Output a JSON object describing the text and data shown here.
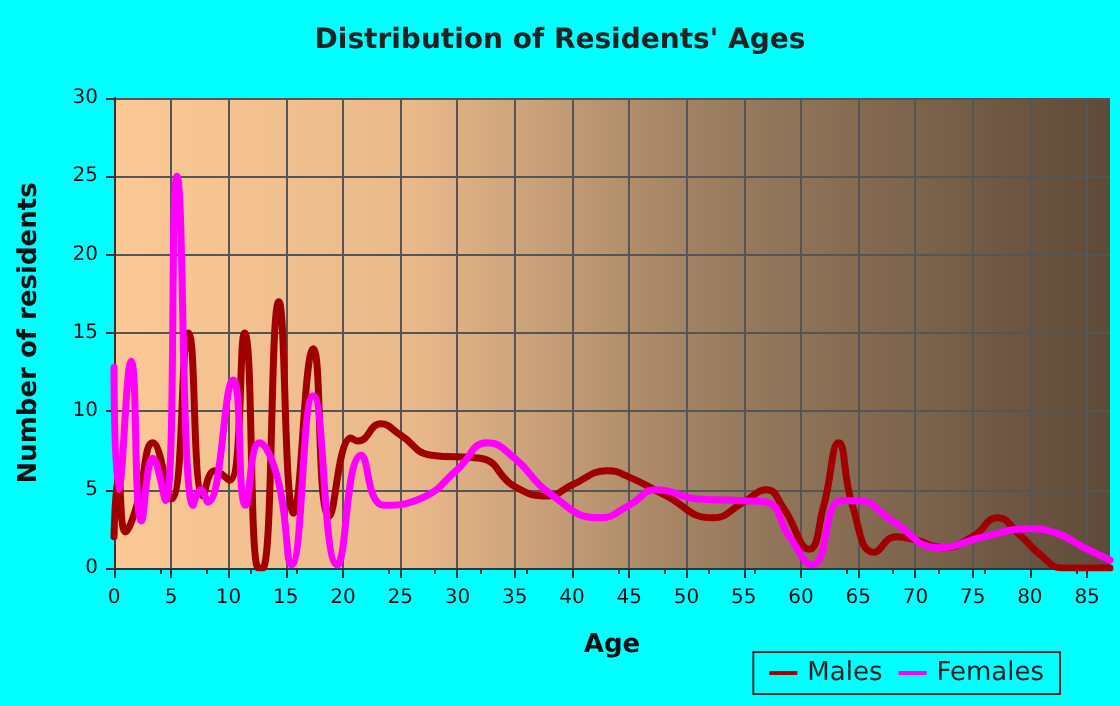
{
  "chart_data": {
    "type": "line",
    "title": "Distribution of Residents' Ages",
    "xlabel": "Age",
    "ylabel": "Number of residents",
    "xlim": [
      0,
      87
    ],
    "xticks": [
      0,
      5,
      10,
      15,
      20,
      25,
      30,
      35,
      40,
      45,
      50,
      55,
      60,
      65,
      70,
      75,
      80,
      85
    ],
    "ylim": [
      0,
      30
    ],
    "yticks": [
      0,
      5,
      10,
      15,
      20,
      25,
      30
    ],
    "grid": true,
    "legend": "bottom right",
    "marker": "none",
    "series": [
      {
        "name": "Males",
        "color": "#a00000",
        "x": [
          0,
          0.4,
          1,
          2,
          3.4,
          5,
          6.5,
          7.8,
          8.8,
          10.1,
          11.4,
          12.6,
          13,
          14.4,
          15.7,
          17.4,
          18.8,
          20.7,
          21.3,
          23.3,
          25,
          27.7,
          32,
          35,
          37.9,
          40,
          43.1,
          45,
          48,
          52.3,
          55,
          57,
          58.5,
          60.7,
          62,
          63.3,
          64.5,
          66.4,
          68.3,
          70,
          72.4,
          75,
          77.2,
          79,
          81,
          82.8,
          85,
          87
        ],
        "values": [
          2,
          6,
          2.3,
          4,
          8,
          4.4,
          15,
          4.6,
          6.2,
          5.6,
          15,
          0,
          0,
          17,
          3.5,
          14,
          3.3,
          8.3,
          8.1,
          9.2,
          8.5,
          7.2,
          7,
          5.2,
          4.6,
          5.3,
          6.2,
          5.8,
          4.7,
          3.2,
          4.2,
          5,
          3.8,
          1.2,
          4,
          8,
          4,
          1,
          2,
          1.8,
          1.3,
          2,
          3.2,
          2.2,
          0.8,
          0,
          0,
          0
        ]
      },
      {
        "name": "Females",
        "color": "#ff00ff",
        "x": [
          0,
          0.4,
          1.5,
          2.4,
          3.4,
          4.5,
          5.5,
          6.9,
          7.6,
          8.2,
          10.4,
          11.5,
          12.7,
          14.3,
          15.5,
          17.4,
          19.5,
          21.6,
          23.6,
          27,
          30,
          32.6,
          35,
          38,
          42.4,
          45,
          47.4,
          51,
          55,
          57,
          59,
          61,
          63.5,
          65,
          68,
          72,
          76,
          80,
          82,
          85,
          87
        ],
        "values": [
          12.8,
          5,
          13.2,
          3,
          7,
          4.3,
          25,
          4,
          5,
          4.2,
          12,
          4,
          8,
          5.7,
          0.2,
          11,
          0.2,
          7.2,
          4,
          4.5,
          6.3,
          8,
          7,
          4.8,
          3.2,
          4,
          5,
          4.4,
          4.3,
          4.2,
          2,
          0.2,
          4.3,
          4.3,
          3,
          1.3,
          2,
          2.5,
          2.3,
          1.2,
          0.5
        ]
      }
    ]
  }
}
